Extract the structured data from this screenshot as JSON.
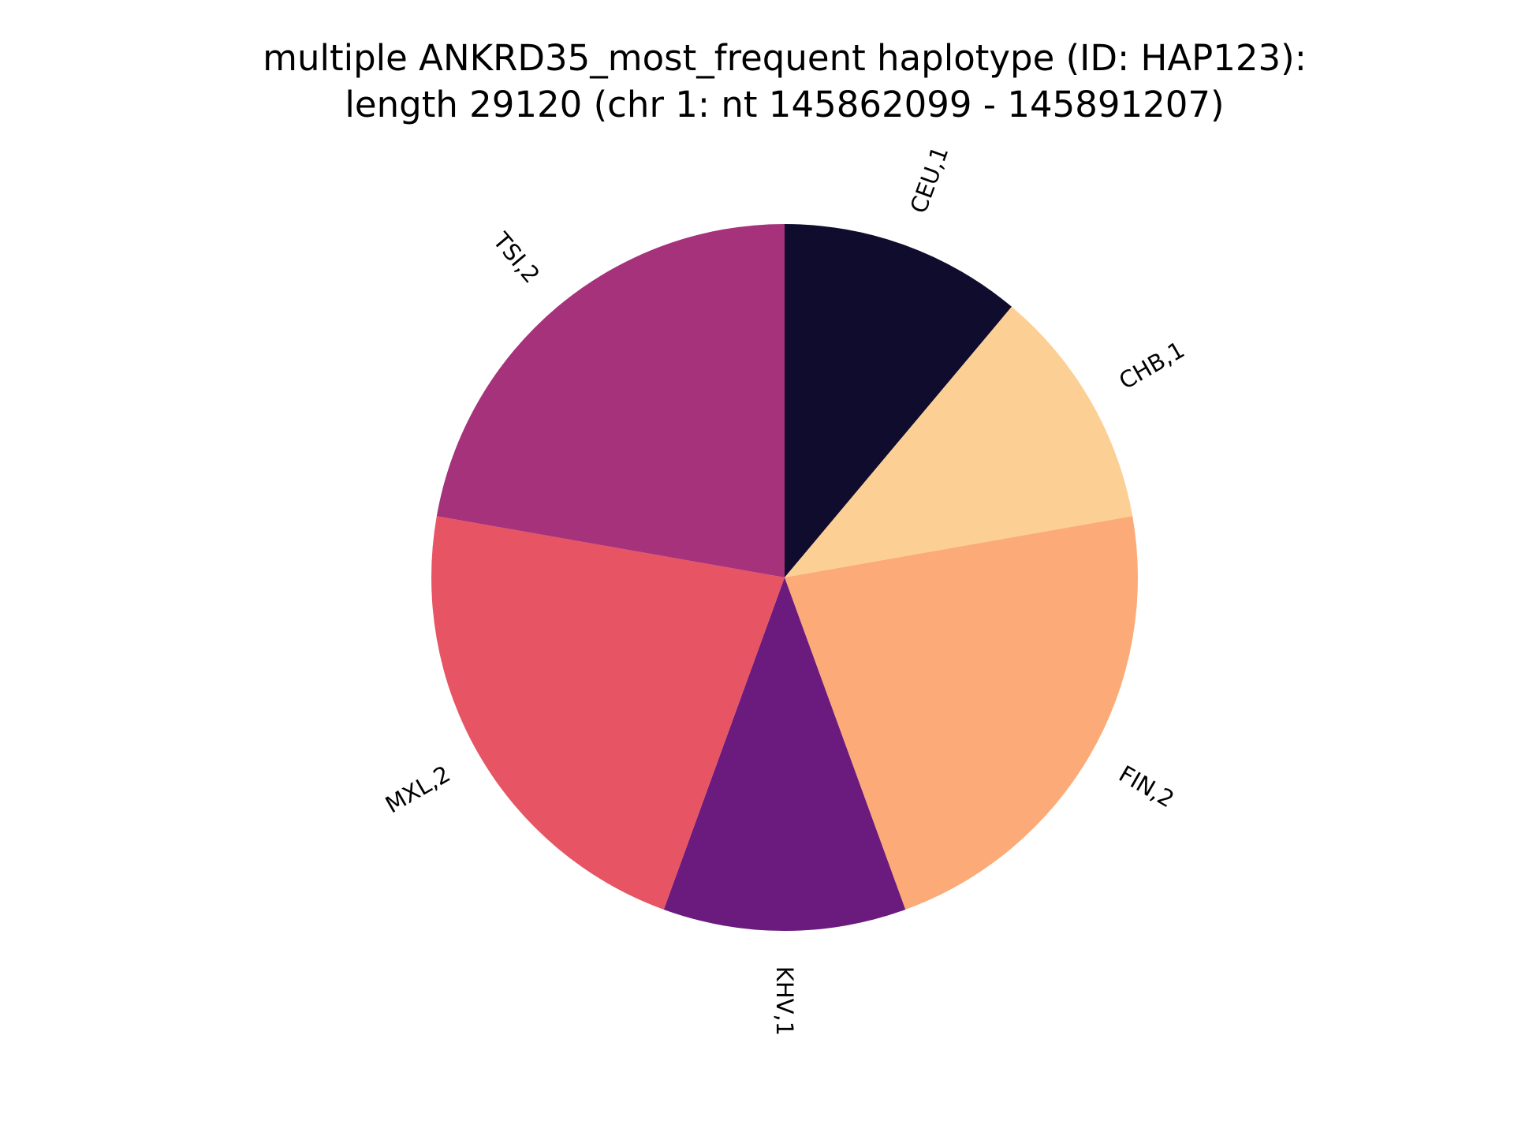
{
  "chart_data": {
    "type": "pie",
    "title": [
      "multiple ANKRD35_most_frequent haplotype (ID: HAP123):",
      "length 29120 (chr 1: nt 145862099 - 145891207)"
    ],
    "start_angle_deg": 90,
    "direction": "clockwise",
    "slices": [
      {
        "population": "CEU",
        "count": 1,
        "label": "CEU,1",
        "color": "#100c2e"
      },
      {
        "population": "CHB",
        "count": 1,
        "label": "CHB,1",
        "color": "#fcd095"
      },
      {
        "population": "FIN",
        "count": 2,
        "label": "FIN,2",
        "color": "#fcaa77"
      },
      {
        "population": "KHV",
        "count": 1,
        "label": "KHV,1",
        "color": "#6b1a7e"
      },
      {
        "population": "MXL",
        "count": 2,
        "label": "MXL,2",
        "color": "#e75464"
      },
      {
        "population": "TSI",
        "count": 2,
        "label": "TSI,2",
        "color": "#a5327a"
      }
    ]
  }
}
